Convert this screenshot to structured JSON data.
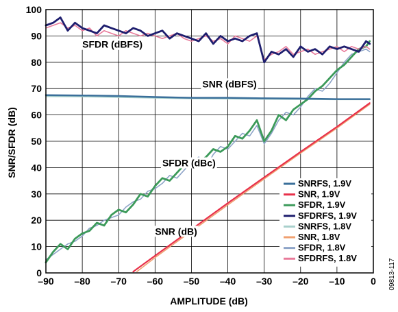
{
  "chart_data": {
    "type": "line",
    "xlabel": "AMPLITUDE (dB)",
    "ylabel": "SNR/SFDR (dB)",
    "xlim": [
      -90,
      0
    ],
    "ylim": [
      0,
      100
    ],
    "x_ticks": [
      "–90",
      "–80",
      "–70",
      "–60",
      "–50",
      "–40",
      "–30",
      "–20",
      "–10",
      "0"
    ],
    "y_ticks": [
      "0",
      "10",
      "20",
      "30",
      "40",
      "50",
      "60",
      "70",
      "80",
      "90",
      "100"
    ],
    "grid": true,
    "legend_position": "bottom-right",
    "figure_id": "09813-117",
    "annotations": [
      {
        "text": "SFDR (dBFS)",
        "x": -80,
        "y": 85.5
      },
      {
        "text": "SNR (dBFS)",
        "x": -47,
        "y": 70.5
      },
      {
        "text": "SFDR (dBc)",
        "x": -58,
        "y": 40.5
      },
      {
        "text": "SNR (dB)",
        "x": -60,
        "y": 14.5
      }
    ],
    "series": [
      {
        "name": "SNRFS, 1.9V",
        "color": "#3a6f9a",
        "x": [
          -90,
          -80,
          -70,
          -60,
          -50,
          -40,
          -30,
          -20,
          -10,
          -1
        ],
        "y": [
          67.5,
          67.4,
          67.2,
          66.8,
          66.5,
          66.5,
          66.3,
          66.2,
          66.0,
          66.0
        ]
      },
      {
        "name": "SNR, 1.9V",
        "color": "#e8304a",
        "x": [
          -66,
          -60,
          -50,
          -40,
          -30,
          -20,
          -10,
          -1
        ],
        "y": [
          0.5,
          6.5,
          16.5,
          26.5,
          36.3,
          46.0,
          55.5,
          64.5
        ]
      },
      {
        "name": "SFDR, 1.9V",
        "color": "#3c9a5a",
        "x": [
          -90,
          -88,
          -86,
          -84,
          -82,
          -80,
          -78,
          -76,
          -74,
          -72,
          -70,
          -68,
          -66,
          -64,
          -62,
          -60,
          -58,
          -56,
          -54,
          -52,
          -50,
          -48,
          -46,
          -44,
          -42,
          -40,
          -38,
          -36,
          -34,
          -32,
          -30,
          -28,
          -26,
          -24,
          -22,
          -20,
          -18,
          -16,
          -14,
          -12,
          -10,
          -8,
          -6,
          -4,
          -2,
          -1
        ],
        "y": [
          4,
          8,
          11,
          9,
          13,
          15,
          16,
          19,
          18,
          22,
          24,
          23,
          26,
          30,
          29,
          33,
          36,
          35,
          38,
          41,
          43,
          42,
          44,
          47,
          46,
          48,
          52,
          51,
          54,
          58,
          50,
          54,
          60,
          58,
          62,
          64,
          66,
          69,
          71,
          74,
          77,
          79,
          82,
          85,
          86,
          88
        ]
      },
      {
        "name": "SFDRFS, 1.9V",
        "color": "#1e1e6e",
        "x": [
          -90,
          -88,
          -86,
          -84,
          -82,
          -80,
          -78,
          -76,
          -74,
          -72,
          -70,
          -68,
          -66,
          -64,
          -62,
          -60,
          -58,
          -56,
          -54,
          -52,
          -50,
          -48,
          -46,
          -44,
          -42,
          -40,
          -38,
          -36,
          -34,
          -32,
          -30,
          -28,
          -26,
          -24,
          -22,
          -20,
          -18,
          -16,
          -14,
          -12,
          -10,
          -8,
          -6,
          -4,
          -2,
          -1
        ],
        "y": [
          94,
          95,
          97,
          92,
          95,
          93,
          92,
          91,
          94,
          93,
          92,
          91,
          93,
          92,
          90,
          91,
          92,
          89,
          91,
          90,
          89,
          88,
          91,
          87,
          90,
          88,
          89,
          88,
          90,
          91,
          80,
          84,
          83,
          85,
          82,
          86,
          84,
          85,
          83,
          86,
          85,
          86,
          85,
          84,
          88,
          87
        ]
      },
      {
        "name": "SNRFS, 1.8V",
        "color": "#a8d0cc",
        "x": [
          -90,
          -80,
          -70,
          -60,
          -50,
          -40,
          -30,
          -20,
          -10,
          -1
        ],
        "y": [
          67.0,
          66.9,
          66.7,
          66.4,
          66.2,
          66.1,
          66.0,
          65.9,
          65.8,
          65.8
        ]
      },
      {
        "name": "SNR, 1.8V",
        "color": "#f0a070",
        "x": [
          -65,
          -60,
          -50,
          -40,
          -30,
          -20,
          -10,
          -1
        ],
        "y": [
          0.5,
          5.8,
          15.8,
          25.8,
          35.7,
          45.5,
          55.0,
          64.0
        ]
      },
      {
        "name": "SFDR, 1.8V",
        "color": "#8ea4c8",
        "x": [
          -90,
          -88,
          -86,
          -84,
          -82,
          -80,
          -78,
          -76,
          -74,
          -72,
          -70,
          -68,
          -66,
          -64,
          -62,
          -60,
          -58,
          -56,
          -54,
          -52,
          -50,
          -48,
          -46,
          -44,
          -42,
          -40,
          -38,
          -36,
          -34,
          -32,
          -30,
          -28,
          -26,
          -24,
          -22,
          -20,
          -18,
          -16,
          -14,
          -12,
          -10,
          -8,
          -6,
          -4,
          -2,
          -1
        ],
        "y": [
          5,
          7,
          9,
          11,
          12,
          14,
          17,
          18,
          20,
          21,
          22,
          25,
          27,
          28,
          31,
          32,
          34,
          37,
          36,
          39,
          42,
          44,
          40,
          45,
          48,
          47,
          50,
          53,
          52,
          56,
          49,
          53,
          58,
          61,
          60,
          63,
          67,
          70,
          69,
          72,
          76,
          80,
          83,
          84,
          85,
          84
        ]
      },
      {
        "name": "SFDRFS, 1.8V",
        "color": "#e87a9a",
        "x": [
          -90,
          -88,
          -86,
          -84,
          -82,
          -80,
          -78,
          -76,
          -74,
          -72,
          -70,
          -68,
          -66,
          -64,
          -62,
          -60,
          -58,
          -56,
          -54,
          -52,
          -50,
          -48,
          -46,
          -44,
          -42,
          -40,
          -38,
          -36,
          -34,
          -32,
          -30,
          -28,
          -26,
          -24,
          -22,
          -20,
          -18,
          -16,
          -14,
          -12,
          -10,
          -8,
          -6,
          -4,
          -2,
          -1
        ],
        "y": [
          93,
          94,
          95,
          93,
          94,
          92,
          93,
          90,
          92,
          91,
          90,
          92,
          91,
          90,
          91,
          90,
          89,
          90,
          91,
          89,
          88,
          89,
          90,
          88,
          89,
          87,
          90,
          89,
          88,
          90,
          81,
          83,
          84,
          86,
          83,
          84,
          85,
          83,
          84,
          85,
          86,
          84,
          86,
          85,
          86,
          85
        ]
      }
    ]
  }
}
